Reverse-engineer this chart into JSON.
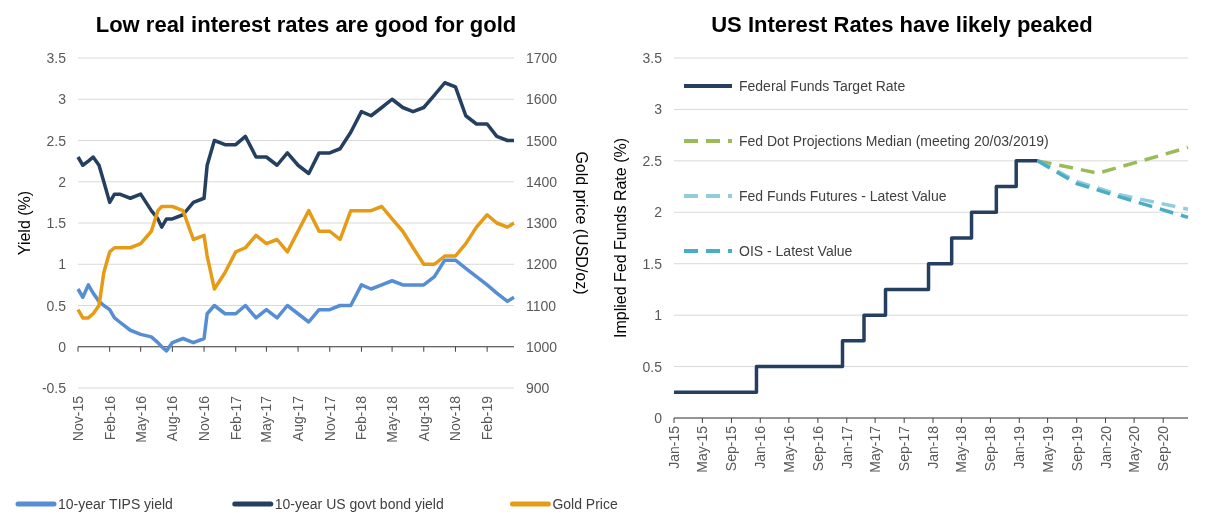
{
  "chart_data": [
    {
      "type": "line",
      "title": "Low real interest rates are good for gold",
      "ylabel": "Yield (%)",
      "y2label": "Gold price (USD/oz)",
      "x": [
        "2015-11-01",
        "2015-11-15",
        "2015-12-01",
        "2015-12-15",
        "2016-01-01",
        "2016-01-15",
        "2016-02-01",
        "2016-02-15",
        "2016-03-01",
        "2016-04-01",
        "2016-05-01",
        "2016-06-01",
        "2016-06-20",
        "2016-07-01",
        "2016-07-15",
        "2016-08-01",
        "2016-09-01",
        "2016-10-01",
        "2016-11-01",
        "2016-11-10",
        "2016-12-01",
        "2017-01-01",
        "2017-02-01",
        "2017-03-01",
        "2017-04-01",
        "2017-05-01",
        "2017-06-01",
        "2017-07-01",
        "2017-08-01",
        "2017-09-01",
        "2017-10-01",
        "2017-11-01",
        "2017-12-01",
        "2018-01-01",
        "2018-02-01",
        "2018-03-01",
        "2018-04-01",
        "2018-05-01",
        "2018-06-01",
        "2018-07-01",
        "2018-08-01",
        "2018-09-01",
        "2018-10-01",
        "2018-11-01",
        "2018-12-01",
        "2019-01-01",
        "2019-02-01",
        "2019-03-01",
        "2019-04-01",
        "2019-04-20"
      ],
      "series": [
        {
          "name": "10-year TIPS yield",
          "color": "#558ed5",
          "values": [
            0.7,
            0.6,
            0.75,
            0.65,
            0.55,
            0.5,
            0.45,
            0.35,
            0.3,
            0.2,
            0.15,
            0.12,
            0.05,
            0.0,
            -0.05,
            0.05,
            0.1,
            0.05,
            0.1,
            0.4,
            0.5,
            0.4,
            0.4,
            0.5,
            0.35,
            0.45,
            0.35,
            0.5,
            0.4,
            0.3,
            0.45,
            0.45,
            0.5,
            0.5,
            0.75,
            0.7,
            0.75,
            0.8,
            0.75,
            0.75,
            0.75,
            0.85,
            1.05,
            1.05,
            0.95,
            0.85,
            0.75,
            0.65,
            0.55,
            0.6
          ]
        },
        {
          "name": "10-year US govt bond yield",
          "color": "#243f60",
          "values": [
            2.3,
            2.2,
            2.25,
            2.3,
            2.2,
            2.0,
            1.75,
            1.85,
            1.85,
            1.8,
            1.85,
            1.65,
            1.55,
            1.45,
            1.55,
            1.55,
            1.6,
            1.75,
            1.8,
            2.2,
            2.5,
            2.45,
            2.45,
            2.55,
            2.3,
            2.3,
            2.2,
            2.35,
            2.2,
            2.1,
            2.35,
            2.35,
            2.4,
            2.6,
            2.85,
            2.8,
            2.9,
            3.0,
            2.9,
            2.85,
            2.9,
            3.05,
            3.2,
            3.15,
            2.8,
            2.7,
            2.7,
            2.55,
            2.5,
            2.5
          ]
        },
        {
          "name": "Gold Price",
          "color": "#e69b16",
          "values": [
            1090,
            1070,
            1070,
            1080,
            1100,
            1180,
            1230,
            1240,
            1240,
            1240,
            1250,
            1280,
            1330,
            1340,
            1340,
            1340,
            1330,
            1260,
            1270,
            1220,
            1140,
            1180,
            1230,
            1240,
            1270,
            1250,
            1260,
            1230,
            1280,
            1330,
            1280,
            1280,
            1260,
            1330,
            1330,
            1330,
            1340,
            1310,
            1280,
            1240,
            1200,
            1200,
            1220,
            1220,
            1250,
            1290,
            1320,
            1300,
            1290,
            1300
          ],
          "axis": "y2"
        }
      ],
      "xlim": [
        "2015-11-01",
        "2019-04-20"
      ],
      "xticks": [
        {
          "value": "2015-11-01",
          "label": "Nov-15"
        },
        {
          "value": "2016-02-01",
          "label": "Feb-16"
        },
        {
          "value": "2016-05-01",
          "label": "May-16"
        },
        {
          "value": "2016-08-01",
          "label": "Aug-16"
        },
        {
          "value": "2016-11-01",
          "label": "Nov-16"
        },
        {
          "value": "2017-02-01",
          "label": "Feb-17"
        },
        {
          "value": "2017-05-01",
          "label": "May-17"
        },
        {
          "value": "2017-08-01",
          "label": "Aug-17"
        },
        {
          "value": "2017-11-01",
          "label": "Nov-17"
        },
        {
          "value": "2018-02-01",
          "label": "Feb-18"
        },
        {
          "value": "2018-05-01",
          "label": "May-18"
        },
        {
          "value": "2018-08-01",
          "label": "Aug-18"
        },
        {
          "value": "2018-11-01",
          "label": "Nov-18"
        },
        {
          "value": "2019-02-01",
          "label": "Feb-19"
        }
      ],
      "ylim": [
        -0.5,
        3.5
      ],
      "yticks": [
        -0.5,
        0,
        0.5,
        1,
        1.5,
        2,
        2.5,
        3,
        3.5
      ],
      "y2lim": [
        900,
        1700
      ],
      "y2ticks": [
        900,
        1000,
        1100,
        1200,
        1300,
        1400,
        1500,
        1600,
        1700
      ],
      "grid": "y",
      "legend": "bottom"
    },
    {
      "type": "line",
      "title": "US Interest Rates have likely peaked",
      "ylabel": "Implied Fed Funds Rate (%)",
      "series": [
        {
          "name": "Federal Funds Target Rate",
          "type": "step",
          "color": "#243f60",
          "line_style": "solid",
          "x": [
            "2015-01-01",
            "2015-12-16",
            "2016-12-14",
            "2017-03-15",
            "2017-06-14",
            "2017-12-13",
            "2018-03-21",
            "2018-06-13",
            "2018-09-26",
            "2018-12-19",
            "2019-03-20"
          ],
          "values": [
            0.25,
            0.5,
            0.75,
            1,
            1.25,
            1.5,
            1.75,
            2,
            2.25,
            2.5,
            2.5
          ]
        },
        {
          "name": "Fed Dot Projections Median (meeting 20/03/2019)",
          "color": "#9bbb59",
          "line_style": "dashed",
          "x": [
            "2019-03-20",
            "2019-12-01",
            "2020-06-01",
            "2020-12-15"
          ],
          "values": [
            2.5,
            2.38,
            2.5,
            2.63
          ]
        },
        {
          "name": "Fed Funds Futures - Latest Value",
          "color": "#92cddc",
          "line_style": "dashed",
          "x": [
            "2019-03-20",
            "2019-09-01",
            "2020-03-01",
            "2020-12-15"
          ],
          "values": [
            2.5,
            2.3,
            2.17,
            2.03
          ]
        },
        {
          "name": "OIS - Latest Value",
          "color": "#4bacc6",
          "line_style": "dashed",
          "x": [
            "2019-03-20",
            "2019-09-01",
            "2020-03-01",
            "2020-12-15"
          ],
          "values": [
            2.5,
            2.28,
            2.15,
            1.95
          ]
        }
      ],
      "xlim": [
        "2015-01-01",
        "2020-12-15"
      ],
      "xticks": [
        {
          "value": "2015-01-01",
          "label": "Jan-15"
        },
        {
          "value": "2015-05-01",
          "label": "May-15"
        },
        {
          "value": "2015-09-01",
          "label": "Sep-15"
        },
        {
          "value": "2016-01-01",
          "label": "Jan-16"
        },
        {
          "value": "2016-05-01",
          "label": "May-16"
        },
        {
          "value": "2016-09-01",
          "label": "Sep-16"
        },
        {
          "value": "2017-01-01",
          "label": "Jan-17"
        },
        {
          "value": "2017-05-01",
          "label": "May-17"
        },
        {
          "value": "2017-09-01",
          "label": "Sep-17"
        },
        {
          "value": "2018-01-01",
          "label": "Jan-18"
        },
        {
          "value": "2018-05-01",
          "label": "May-18"
        },
        {
          "value": "2018-09-01",
          "label": "Sep-18"
        },
        {
          "value": "2019-01-01",
          "label": "Jan-19"
        },
        {
          "value": "2019-05-01",
          "label": "May-19"
        },
        {
          "value": "2019-09-01",
          "label": "Sep-19"
        },
        {
          "value": "2020-01-01",
          "label": "Jan-20"
        },
        {
          "value": "2020-05-01",
          "label": "May-20"
        },
        {
          "value": "2020-09-01",
          "label": "Sep-20"
        }
      ],
      "ylim": [
        0,
        3.5
      ],
      "yticks": [
        0,
        0.5,
        1,
        1.5,
        2,
        2.5,
        3,
        3.5
      ],
      "grid": "y",
      "legend": "top left"
    }
  ]
}
